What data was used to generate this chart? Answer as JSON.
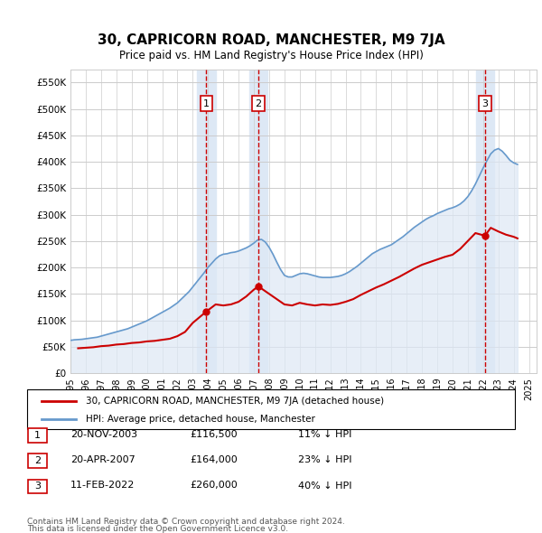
{
  "title": "30, CAPRICORN ROAD, MANCHESTER, M9 7JA",
  "subtitle": "Price paid vs. HM Land Registry's House Price Index (HPI)",
  "ylabel_ticks": [
    "£0",
    "£50K",
    "£100K",
    "£150K",
    "£200K",
    "£250K",
    "£300K",
    "£350K",
    "£400K",
    "£450K",
    "£500K",
    "£550K"
  ],
  "ytick_values": [
    0,
    50000,
    100000,
    150000,
    200000,
    250000,
    300000,
    350000,
    400000,
    450000,
    500000,
    550000
  ],
  "ylim": [
    0,
    575000
  ],
  "xlim_start": 1995.0,
  "xlim_end": 2025.5,
  "transactions": [
    {
      "num": 1,
      "date": "20-NOV-2003",
      "price": 116500,
      "year": 2003.89,
      "label": "11% ↓ HPI"
    },
    {
      "num": 2,
      "date": "20-APR-2007",
      "price": 164000,
      "year": 2007.3,
      "label": "23% ↓ HPI"
    },
    {
      "num": 3,
      "date": "11-FEB-2022",
      "price": 260000,
      "year": 2022.12,
      "label": "40% ↓ HPI"
    }
  ],
  "legend_property_label": "30, CAPRICORN ROAD, MANCHESTER, M9 7JA (detached house)",
  "legend_hpi_label": "HPI: Average price, detached house, Manchester",
  "footnote1": "Contains HM Land Registry data © Crown copyright and database right 2024.",
  "footnote2": "This data is licensed under the Open Government Licence v3.0.",
  "price_line_color": "#cc0000",
  "hpi_line_color": "#6699cc",
  "hpi_fill_color": "#dde8f5",
  "transaction_box_color": "#cc0000",
  "vline_color": "#cc0000",
  "highlight_fill": "#dde8f5",
  "grid_color": "#cccccc",
  "background_color": "#ffffff",
  "hpi_data_years": [
    1995,
    1995.25,
    1995.5,
    1995.75,
    1996,
    1996.25,
    1996.5,
    1996.75,
    1997,
    1997.25,
    1997.5,
    1997.75,
    1998,
    1998.25,
    1998.5,
    1998.75,
    1999,
    1999.25,
    1999.5,
    1999.75,
    2000,
    2000.25,
    2000.5,
    2000.75,
    2001,
    2001.25,
    2001.5,
    2001.75,
    2002,
    2002.25,
    2002.5,
    2002.75,
    2003,
    2003.25,
    2003.5,
    2003.75,
    2004,
    2004.25,
    2004.5,
    2004.75,
    2005,
    2005.25,
    2005.5,
    2005.75,
    2006,
    2006.25,
    2006.5,
    2006.75,
    2007,
    2007.25,
    2007.5,
    2007.75,
    2008,
    2008.25,
    2008.5,
    2008.75,
    2009,
    2009.25,
    2009.5,
    2009.75,
    2010,
    2010.25,
    2010.5,
    2010.75,
    2011,
    2011.25,
    2011.5,
    2011.75,
    2012,
    2012.25,
    2012.5,
    2012.75,
    2013,
    2013.25,
    2013.5,
    2013.75,
    2014,
    2014.25,
    2014.5,
    2014.75,
    2015,
    2015.25,
    2015.5,
    2015.75,
    2016,
    2016.25,
    2016.5,
    2016.75,
    2017,
    2017.25,
    2017.5,
    2017.75,
    2018,
    2018.25,
    2018.5,
    2018.75,
    2019,
    2019.25,
    2019.5,
    2019.75,
    2020,
    2020.25,
    2020.5,
    2020.75,
    2021,
    2021.25,
    2021.5,
    2021.75,
    2022,
    2022.25,
    2022.5,
    2022.75,
    2023,
    2023.25,
    2023.5,
    2023.75,
    2024,
    2024.25
  ],
  "hpi_data_values": [
    62000,
    63000,
    63500,
    64000,
    65000,
    66000,
    67000,
    68000,
    70000,
    72000,
    74000,
    76000,
    78000,
    80000,
    82000,
    84000,
    87000,
    90000,
    93000,
    96000,
    99000,
    103000,
    107000,
    111000,
    115000,
    119000,
    123000,
    128000,
    133000,
    140000,
    147000,
    154000,
    163000,
    172000,
    181000,
    190000,
    200000,
    208000,
    216000,
    222000,
    225000,
    226000,
    228000,
    229000,
    231000,
    234000,
    237000,
    241000,
    246000,
    252000,
    253000,
    248000,
    238000,
    225000,
    210000,
    196000,
    185000,
    182000,
    182000,
    185000,
    188000,
    189000,
    188000,
    186000,
    184000,
    182000,
    181000,
    181000,
    181000,
    182000,
    183000,
    185000,
    188000,
    192000,
    197000,
    202000,
    208000,
    214000,
    220000,
    226000,
    230000,
    234000,
    237000,
    240000,
    243000,
    248000,
    253000,
    258000,
    264000,
    270000,
    276000,
    281000,
    286000,
    291000,
    295000,
    298000,
    302000,
    305000,
    308000,
    311000,
    313000,
    316000,
    320000,
    326000,
    334000,
    345000,
    358000,
    373000,
    388000,
    402000,
    415000,
    422000,
    425000,
    420000,
    412000,
    403000,
    398000,
    395000
  ],
  "price_data_years": [
    1995.5,
    1996.0,
    1996.5,
    1997.0,
    1997.5,
    1998.0,
    1998.5,
    1999.0,
    1999.5,
    2000.0,
    2000.5,
    2001.0,
    2001.5,
    2002.0,
    2002.5,
    2003.0,
    2003.89,
    2004.5,
    2005.0,
    2005.5,
    2006.0,
    2006.5,
    2007.0,
    2007.3,
    2007.75,
    2008.5,
    2009.0,
    2009.5,
    2010.0,
    2010.5,
    2011.0,
    2011.5,
    2012.0,
    2012.5,
    2013.0,
    2013.5,
    2014.0,
    2014.5,
    2015.0,
    2015.5,
    2016.0,
    2016.5,
    2017.0,
    2017.5,
    2018.0,
    2018.5,
    2019.0,
    2019.5,
    2020.0,
    2020.5,
    2021.0,
    2021.5,
    2022.12,
    2022.5,
    2023.0,
    2023.5,
    2024.0,
    2024.25
  ],
  "price_data_values": [
    47000,
    48000,
    49000,
    51000,
    52000,
    54000,
    55000,
    57000,
    58000,
    60000,
    61000,
    63000,
    65000,
    70000,
    78000,
    95000,
    116500,
    130000,
    128000,
    130000,
    135000,
    145000,
    158000,
    164000,
    155000,
    140000,
    130000,
    128000,
    133000,
    130000,
    128000,
    130000,
    129000,
    131000,
    135000,
    140000,
    148000,
    155000,
    162000,
    168000,
    175000,
    182000,
    190000,
    198000,
    205000,
    210000,
    215000,
    220000,
    224000,
    235000,
    250000,
    265000,
    260000,
    275000,
    268000,
    262000,
    258000,
    255000
  ]
}
